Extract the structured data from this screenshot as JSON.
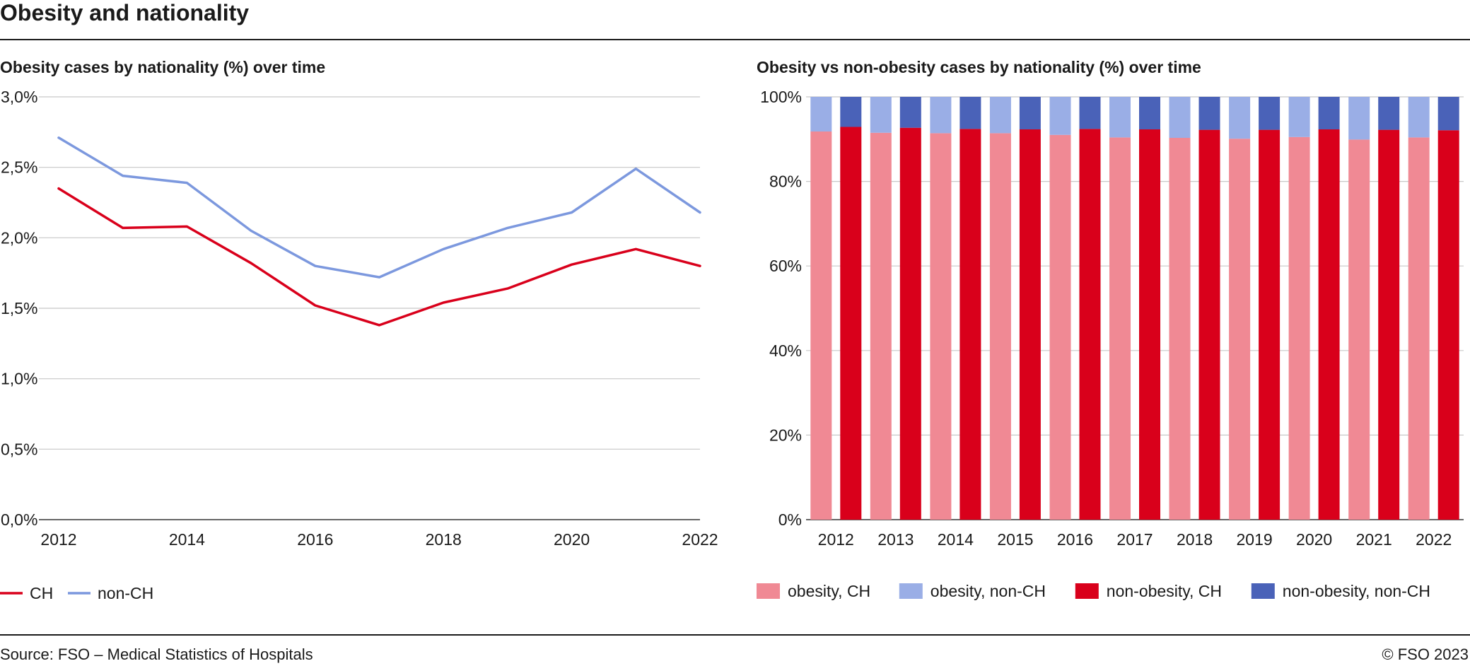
{
  "title": "Obesity and nationality",
  "footer": {
    "source": "Source: FSO – Medical Statistics of Hospitals",
    "copyright": "© FSO 2023"
  },
  "chart_data": [
    {
      "type": "line",
      "title": "Obesity cases by nationality (%) over time",
      "xlabel": "",
      "ylabel": "",
      "x": [
        2012,
        2013,
        2014,
        2015,
        2016,
        2017,
        2018,
        2019,
        2020,
        2021,
        2022
      ],
      "x_tick_labels": [
        "2012",
        "2014",
        "2016",
        "2018",
        "2020",
        "2022"
      ],
      "y_tick_labels": [
        "0,0%",
        "0,5%",
        "1,0%",
        "1,5%",
        "2,0%",
        "2,5%",
        "3,0%"
      ],
      "ylim": [
        0,
        3.0
      ],
      "grid": "horizontal",
      "legend_position": "bottom-left",
      "series": [
        {
          "name": "CH",
          "color": "#d9001b",
          "values": [
            2.35,
            2.07,
            2.08,
            1.82,
            1.52,
            1.38,
            1.54,
            1.64,
            1.81,
            1.92,
            1.8
          ]
        },
        {
          "name": "non-CH",
          "color": "#7c98de",
          "values": [
            2.71,
            2.44,
            2.39,
            2.05,
            1.8,
            1.72,
            1.92,
            2.07,
            2.18,
            2.49,
            2.18
          ]
        }
      ]
    },
    {
      "type": "bar",
      "stacked": true,
      "title": "Obesity vs non-obesity cases by nationality (%) over time",
      "xlabel": "",
      "ylabel": "",
      "categories": [
        "2012",
        "2013",
        "2014",
        "2015",
        "2016",
        "2017",
        "2018",
        "2019",
        "2020",
        "2021",
        "2022"
      ],
      "y_tick_labels": [
        "0%",
        "20%",
        "40%",
        "60%",
        "80%",
        "100%"
      ],
      "ylim": [
        0,
        100
      ],
      "grid": "horizontal",
      "legend_position": "bottom",
      "groups": [
        "CH",
        "non-CH"
      ],
      "series": [
        {
          "name": "obesity, CH",
          "color": "#f08994",
          "group": "CH",
          "values": [
            91.8,
            91.5,
            91.4,
            91.4,
            91.0,
            90.4,
            90.3,
            90.1,
            90.5,
            89.9,
            90.4
          ]
        },
        {
          "name": "obesity, non-CH",
          "color": "#9aaee6",
          "group": "CH",
          "values": [
            8.2,
            8.5,
            8.6,
            8.6,
            9.0,
            9.6,
            9.7,
            9.9,
            9.5,
            10.1,
            9.6
          ]
        },
        {
          "name": "non-obesity, CH",
          "color": "#d9001b",
          "group": "non-CH",
          "values": [
            92.9,
            92.7,
            92.4,
            92.3,
            92.4,
            92.3,
            92.2,
            92.2,
            92.3,
            92.2,
            92.1
          ]
        },
        {
          "name": "non-obesity, non-CH",
          "color": "#4a62b8",
          "group": "non-CH",
          "values": [
            7.1,
            7.3,
            7.6,
            7.7,
            7.6,
            7.7,
            7.8,
            7.8,
            7.7,
            7.8,
            7.9
          ]
        }
      ]
    }
  ]
}
